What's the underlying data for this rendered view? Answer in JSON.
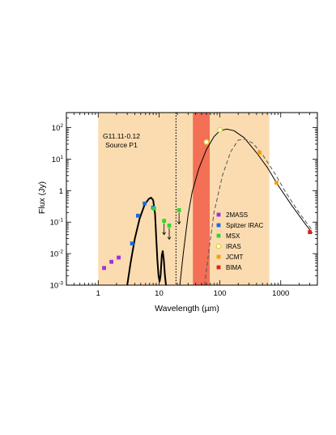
{
  "chart_data": {
    "type": "scatter",
    "title": "",
    "annotation": [
      "G11.11-0.12",
      "Source P1"
    ],
    "xlabel": "Wavelength (µm)",
    "ylabel": "Flux (Jy)",
    "xscale": "log",
    "yscale": "log",
    "xlim": [
      0.3,
      4000
    ],
    "ylim": [
      0.001,
      300
    ],
    "x_ticks": [
      {
        "value": 1,
        "label": "1"
      },
      {
        "value": 10,
        "label": "10"
      },
      {
        "value": 100,
        "label": "100"
      },
      {
        "value": 1000,
        "label": "1000"
      }
    ],
    "y_ticks": [
      {
        "value": 0.001,
        "base": "10",
        "exp": "-3"
      },
      {
        "value": 0.01,
        "base": "10",
        "exp": "-2"
      },
      {
        "value": 0.1,
        "base": "10",
        "exp": "-1"
      },
      {
        "value": 1,
        "base": "1",
        "exp": ""
      },
      {
        "value": 10,
        "base": "10",
        "exp": "1"
      },
      {
        "value": 100,
        "base": "10",
        "exp": "2"
      }
    ],
    "legend_position": "right",
    "shaded_regions": [
      {
        "x_range": [
          1,
          650
        ],
        "color": "#fbdcb0"
      },
      {
        "x_range": [
          36,
          68
        ],
        "color": "#f36f56"
      }
    ],
    "vertical_lines": [
      {
        "x": 19,
        "style": "dotted"
      }
    ],
    "series": [
      {
        "name": "2MASS",
        "marker": "square",
        "color": "#9b30d9",
        "points": [
          {
            "x": 1.25,
            "y": 0.0035
          },
          {
            "x": 1.65,
            "y": 0.0055
          },
          {
            "x": 2.17,
            "y": 0.0075
          }
        ]
      },
      {
        "name": "Spitzer IRAC",
        "marker": "square",
        "color": "#1d6ae5",
        "points": [
          {
            "x": 3.6,
            "y": 0.021
          },
          {
            "x": 4.5,
            "y": 0.16
          },
          {
            "x": 5.8,
            "y": 0.39
          },
          {
            "x": 8.0,
            "y": 0.29
          }
        ]
      },
      {
        "name": "MSX",
        "marker": "square",
        "color": "#2cd82c",
        "points": [
          {
            "x": 8.3,
            "y": 0.27
          },
          {
            "x": 12.1,
            "y": 0.11,
            "upper_limit": true
          },
          {
            "x": 14.7,
            "y": 0.078,
            "upper_limit": true
          },
          {
            "x": 21.3,
            "y": 0.24,
            "upper_limit": true
          }
        ]
      },
      {
        "name": "IRAS",
        "marker": "circle-open",
        "color": "#d9d93a",
        "points": [
          {
            "x": 60,
            "y": 35
          },
          {
            "x": 100,
            "y": 85
          }
        ]
      },
      {
        "name": "JCMT",
        "marker": "square",
        "color": "#f4a000",
        "points": [
          {
            "x": 450,
            "y": 16
          },
          {
            "x": 850,
            "y": 1.8
          }
        ]
      },
      {
        "name": "BIMA",
        "marker": "square",
        "color": "#e0221b",
        "points": [
          {
            "x": 3000,
            "y": 0.048
          }
        ]
      }
    ],
    "curves": [
      {
        "style": "solid",
        "color": "#000000",
        "width": 2,
        "points": [
          [
            3.0,
            0.001
          ],
          [
            3.4,
            0.005
          ],
          [
            4.0,
            0.03
          ],
          [
            4.8,
            0.13
          ],
          [
            5.8,
            0.36
          ],
          [
            6.8,
            0.55
          ],
          [
            7.4,
            0.6
          ],
          [
            8.0,
            0.5
          ],
          [
            8.6,
            0.18
          ],
          [
            9.0,
            0.03
          ],
          [
            9.4,
            0.006
          ],
          [
            9.8,
            0.002
          ],
          [
            10.2,
            0.0013
          ],
          [
            10.6,
            0.002
          ],
          [
            11.1,
            0.009
          ],
          [
            11.5,
            0.012
          ],
          [
            12.0,
            0.006
          ],
          [
            12.5,
            0.002
          ],
          [
            13.0,
            0.001
          ]
        ]
      },
      {
        "style": "solid",
        "color": "#000000",
        "width": 1,
        "points": [
          [
            22,
            0.001
          ],
          [
            25,
            0.01
          ],
          [
            30,
            0.17
          ],
          [
            35,
            0.9
          ],
          [
            45,
            5
          ],
          [
            60,
            20
          ],
          [
            80,
            52
          ],
          [
            100,
            80
          ],
          [
            130,
            90
          ],
          [
            170,
            80
          ],
          [
            250,
            48
          ],
          [
            400,
            16
          ],
          [
            600,
            5.5
          ],
          [
            900,
            1.5
          ],
          [
            1500,
            0.35
          ],
          [
            2500,
            0.09
          ],
          [
            3300,
            0.045
          ]
        ]
      },
      {
        "style": "dashed",
        "color": "#555555",
        "width": 1,
        "points": [
          [
            56,
            0.001
          ],
          [
            65,
            0.01
          ],
          [
            80,
            0.2
          ],
          [
            110,
            3
          ],
          [
            150,
            17
          ],
          [
            200,
            40
          ],
          [
            260,
            43
          ],
          [
            350,
            32
          ],
          [
            500,
            14
          ],
          [
            800,
            3.5
          ],
          [
            1200,
            0.9
          ],
          [
            2000,
            0.2
          ],
          [
            3300,
            0.055
          ]
        ]
      }
    ]
  }
}
